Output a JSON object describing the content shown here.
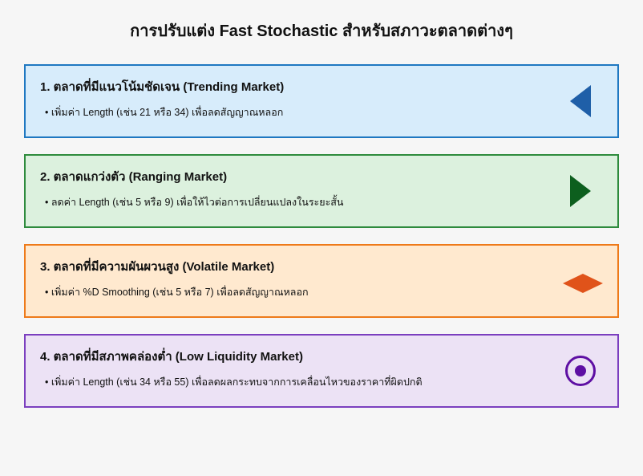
{
  "title": "การปรับแต่ง Fast Stochastic สำหรับสภาวะตลาดต่างๆ",
  "cards": [
    {
      "heading": "1. ตลาดที่มีแนวโน้มชัดเจน (Trending Market)",
      "bullet": "เพิ่มค่า Length (เช่น 21 หรือ 34) เพื่อลดสัญญาณหลอก",
      "border_color": "#1f78c1",
      "background_color": "#d7ecfb",
      "icon_type": "triangle-left",
      "icon_color": "#1f5fa8"
    },
    {
      "heading": "2. ตลาดแกว่งตัว (Ranging Market)",
      "bullet": "ลดค่า Length (เช่น 5 หรือ 9) เพื่อให้ไวต่อการเปลี่ยนแปลงในระยะสั้น",
      "border_color": "#2e8b3d",
      "background_color": "#dcf1de",
      "icon_type": "triangle-right",
      "icon_color": "#0d5f1e"
    },
    {
      "heading": "3. ตลาดที่มีความผันผวนสูง (Volatile Market)",
      "bullet": "เพิ่มค่า %D Smoothing (เช่น 5 หรือ 7) เพื่อลดสัญญาณหลอก",
      "border_color": "#ee7a1a",
      "background_color": "#ffe9cf",
      "icon_type": "diamond",
      "icon_color": "#e0531a"
    },
    {
      "heading": "4. ตลาดที่มีสภาพคล่องต่ำ (Low Liquidity Market)",
      "bullet": "เพิ่มค่า Length (เช่น 34 หรือ 55) เพื่อลดผลกระทบจากการเคลื่อนไหวของราคาที่ผิดปกติ",
      "border_color": "#7b3fbf",
      "background_color": "#ece2f5",
      "icon_type": "ring-dot",
      "icon_color": "#5e0fa3"
    }
  ]
}
